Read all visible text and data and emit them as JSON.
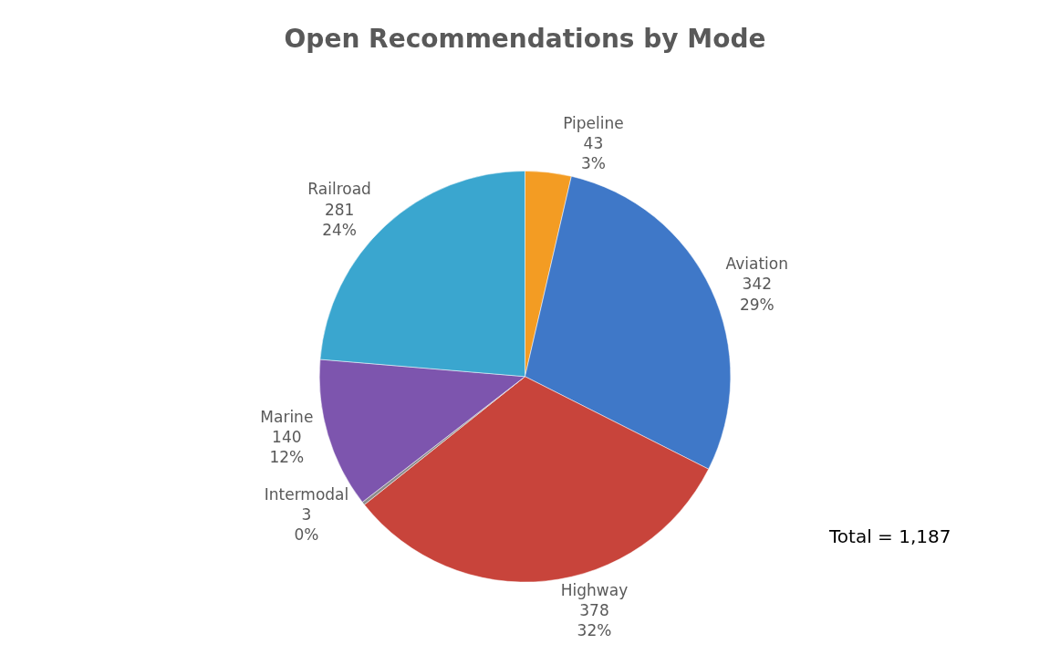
{
  "chart_data": {
    "type": "pie",
    "title": "Open Recommendations by Mode",
    "categories": [
      "Pipeline",
      "Aviation",
      "Highway",
      "Intermodal",
      "Marine",
      "Railroad"
    ],
    "values": [
      43,
      342,
      378,
      3,
      140,
      281
    ],
    "value_labels": [
      "43\n3%",
      "342\n29%",
      "378\n32%",
      "3\n0%",
      "140\n12%",
      "281\n24%"
    ],
    "colors": [
      "#f39c23",
      "#3f78c8",
      "#c8443b",
      "#8c8c8c",
      "#7d55ae",
      "#3aa6cf"
    ],
    "annotations": [
      "Total = 1,187"
    ],
    "legend": false
  }
}
